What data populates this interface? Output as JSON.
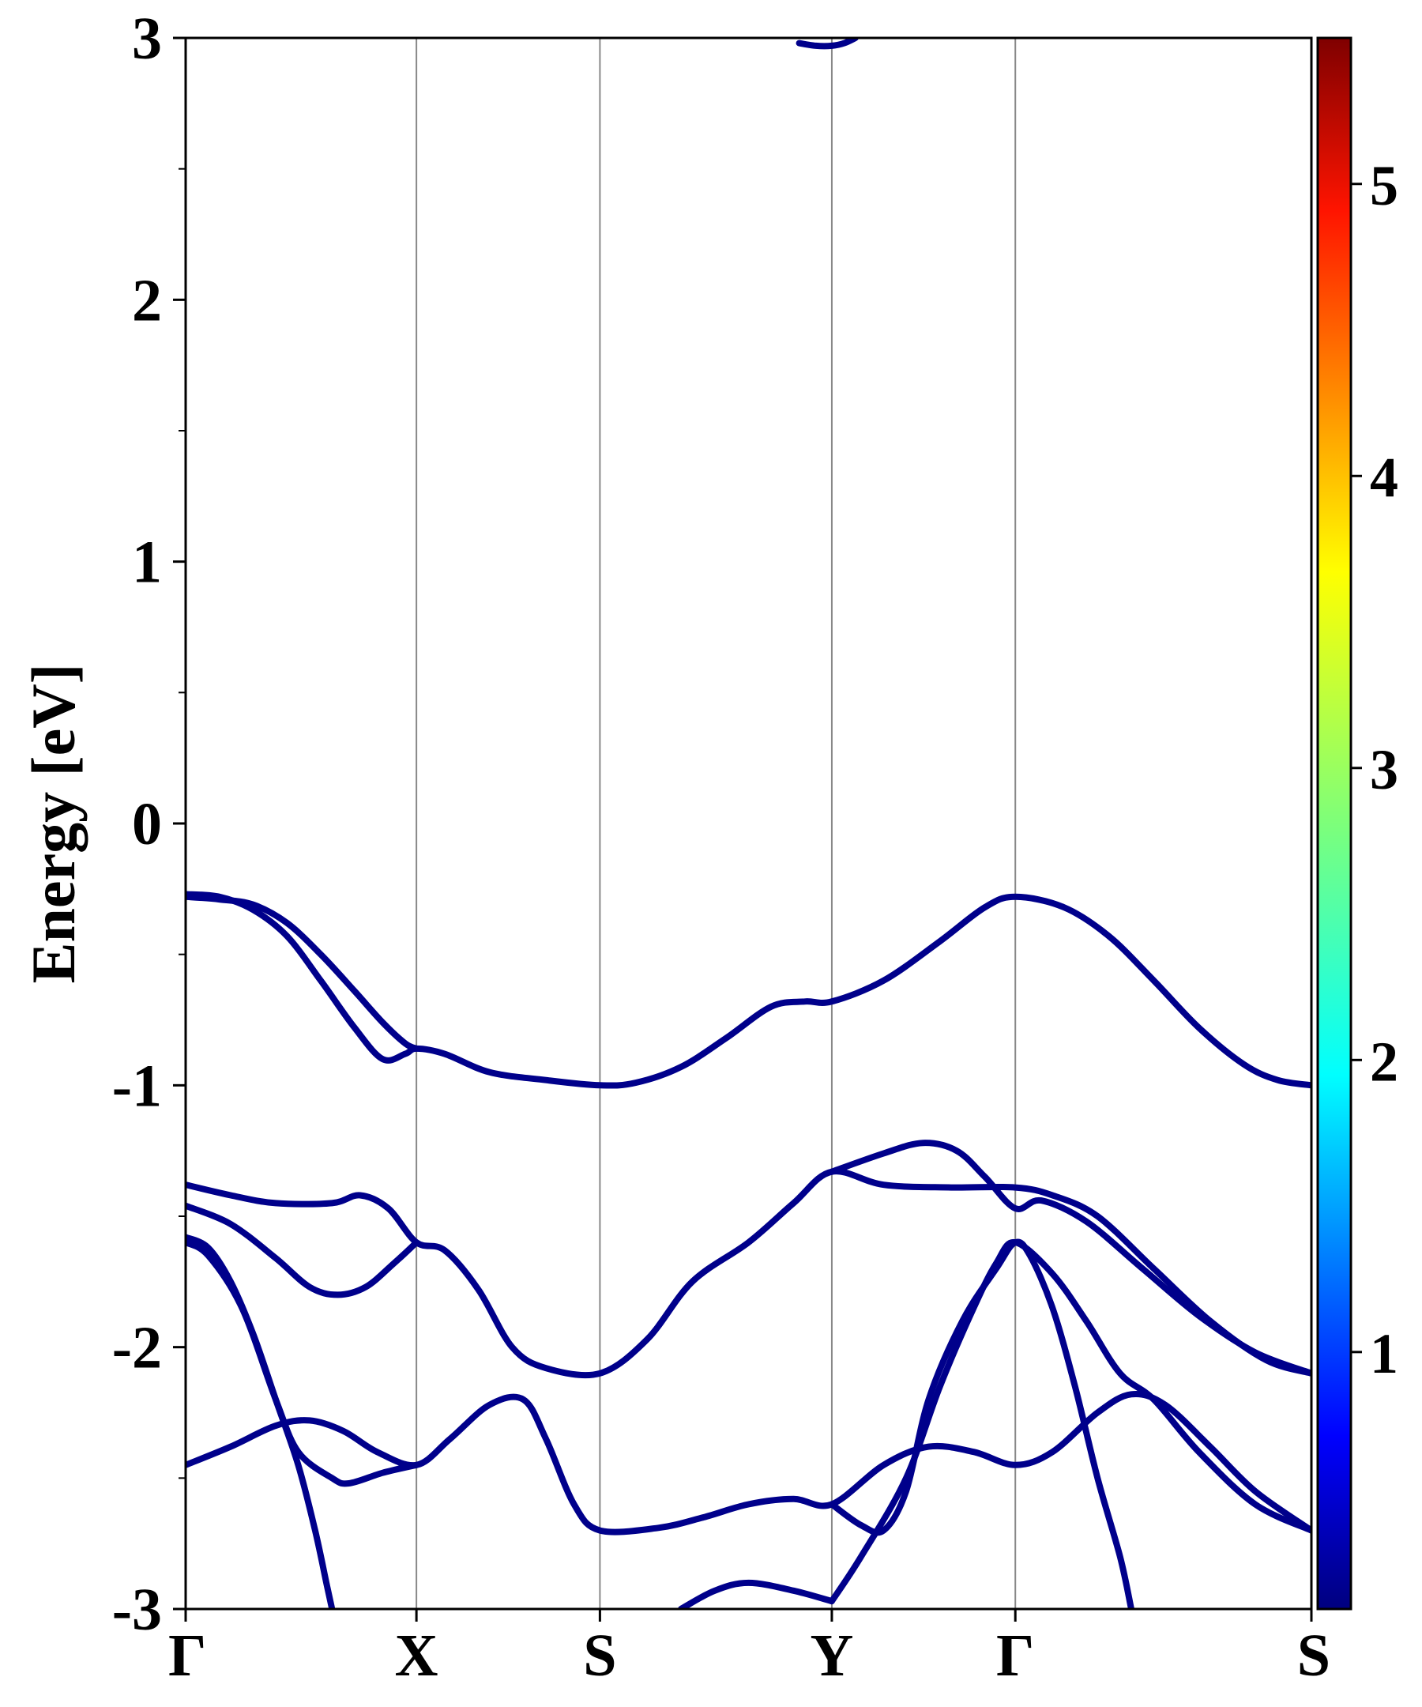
{
  "chart_data": {
    "type": "line",
    "title": "",
    "ylabel": "Energy [eV]",
    "xlabel": "",
    "ylim": [
      -3,
      3
    ],
    "xlim": [
      0,
      1
    ],
    "y_ticks": [
      "3",
      "2",
      "1",
      "0",
      "-1",
      "-2",
      "-3"
    ],
    "y_tick_values": [
      3,
      2,
      1,
      0,
      -1,
      -2,
      -3
    ],
    "y_minor_ticks": [
      2.5,
      1.5,
      0.5,
      -0.5,
      -1.5,
      -2.5
    ],
    "high_symmetry_points": [
      {
        "label": "Γ",
        "k": 0.0
      },
      {
        "label": "X",
        "k": 0.205
      },
      {
        "label": "S",
        "k": 0.368
      },
      {
        "label": "Y",
        "k": 0.574
      },
      {
        "label": "Γ",
        "k": 0.737
      },
      {
        "label": "S",
        "k": 1.0
      }
    ],
    "line_color": "#00008b",
    "colorbar": {
      "colormap": "jet",
      "range": [
        0.12,
        5.5
      ],
      "ticks": [
        "1",
        "2",
        "3",
        "4",
        "5"
      ],
      "tick_values": [
        1,
        2,
        3,
        4,
        5
      ]
    },
    "series": [
      {
        "points": [
          [
            0.0,
            -0.27
          ],
          [
            0.03,
            -0.28
          ],
          [
            0.06,
            -0.33
          ],
          [
            0.09,
            -0.43
          ],
          [
            0.12,
            -0.6
          ],
          [
            0.15,
            -0.78
          ],
          [
            0.175,
            -0.9
          ],
          [
            0.195,
            -0.88
          ],
          [
            0.205,
            -0.86
          ],
          [
            0.23,
            -0.88
          ],
          [
            0.27,
            -0.95
          ],
          [
            0.32,
            -0.98
          ],
          [
            0.368,
            -1.0
          ],
          [
            0.4,
            -0.99
          ],
          [
            0.44,
            -0.93
          ],
          [
            0.48,
            -0.82
          ],
          [
            0.52,
            -0.7
          ],
          [
            0.55,
            -0.68
          ],
          [
            0.574,
            -0.68
          ],
          [
            0.62,
            -0.6
          ],
          [
            0.67,
            -0.45
          ],
          [
            0.71,
            -0.32
          ],
          [
            0.737,
            -0.28
          ],
          [
            0.78,
            -0.32
          ],
          [
            0.82,
            -0.43
          ],
          [
            0.86,
            -0.6
          ],
          [
            0.9,
            -0.78
          ],
          [
            0.94,
            -0.92
          ],
          [
            0.97,
            -0.98
          ],
          [
            1.0,
            -1.0
          ]
        ]
      },
      {
        "points": [
          [
            0.0,
            -0.28
          ],
          [
            0.03,
            -0.29
          ],
          [
            0.06,
            -0.31
          ],
          [
            0.09,
            -0.38
          ],
          [
            0.12,
            -0.5
          ],
          [
            0.15,
            -0.64
          ],
          [
            0.175,
            -0.76
          ],
          [
            0.195,
            -0.84
          ],
          [
            0.205,
            -0.86
          ]
        ]
      },
      {
        "points": [
          [
            0.0,
            -1.38
          ],
          [
            0.04,
            -1.42
          ],
          [
            0.08,
            -1.45
          ],
          [
            0.13,
            -1.45
          ],
          [
            0.155,
            -1.42
          ],
          [
            0.18,
            -1.47
          ],
          [
            0.205,
            -1.6
          ],
          [
            0.23,
            -1.63
          ],
          [
            0.26,
            -1.78
          ],
          [
            0.29,
            -2.0
          ],
          [
            0.32,
            -2.08
          ],
          [
            0.368,
            -2.1
          ],
          [
            0.41,
            -1.97
          ],
          [
            0.45,
            -1.75
          ],
          [
            0.5,
            -1.6
          ],
          [
            0.54,
            -1.45
          ],
          [
            0.574,
            -1.33
          ],
          [
            0.62,
            -1.38
          ],
          [
            0.68,
            -1.39
          ],
          [
            0.737,
            -1.39
          ],
          [
            0.77,
            -1.42
          ],
          [
            0.81,
            -1.5
          ],
          [
            0.86,
            -1.7
          ],
          [
            0.91,
            -1.9
          ],
          [
            0.96,
            -2.05
          ],
          [
            1.0,
            -2.1
          ]
        ]
      },
      {
        "points": [
          [
            0.0,
            -1.46
          ],
          [
            0.04,
            -1.53
          ],
          [
            0.08,
            -1.66
          ],
          [
            0.11,
            -1.77
          ],
          [
            0.135,
            -1.8
          ],
          [
            0.16,
            -1.77
          ],
          [
            0.185,
            -1.68
          ],
          [
            0.205,
            -1.6
          ]
        ]
      },
      {
        "points": [
          [
            0.574,
            -1.33
          ],
          [
            0.62,
            -1.26
          ],
          [
            0.655,
            -1.22
          ],
          [
            0.685,
            -1.25
          ],
          [
            0.71,
            -1.35
          ],
          [
            0.737,
            -1.47
          ],
          [
            0.76,
            -1.44
          ],
          [
            0.8,
            -1.52
          ],
          [
            0.85,
            -1.7
          ],
          [
            0.9,
            -1.88
          ],
          [
            0.95,
            -2.02
          ],
          [
            1.0,
            -2.1
          ]
        ]
      },
      {
        "points": [
          [
            0.0,
            -1.58
          ],
          [
            0.02,
            -1.62
          ],
          [
            0.04,
            -1.75
          ],
          [
            0.06,
            -1.95
          ],
          [
            0.08,
            -2.2
          ],
          [
            0.1,
            -2.45
          ],
          [
            0.115,
            -2.7
          ],
          [
            0.125,
            -2.9
          ],
          [
            0.13,
            -3.0
          ]
        ]
      },
      {
        "points": [
          [
            0.0,
            -1.6
          ],
          [
            0.02,
            -1.65
          ],
          [
            0.05,
            -1.85
          ],
          [
            0.08,
            -2.2
          ],
          [
            0.1,
            -2.4
          ],
          [
            0.13,
            -2.5
          ],
          [
            0.145,
            -2.52
          ],
          [
            0.175,
            -2.48
          ],
          [
            0.205,
            -2.45
          ]
        ]
      },
      {
        "points": [
          [
            0.0,
            -2.45
          ],
          [
            0.04,
            -2.38
          ],
          [
            0.08,
            -2.3
          ],
          [
            0.11,
            -2.28
          ],
          [
            0.14,
            -2.32
          ],
          [
            0.17,
            -2.4
          ],
          [
            0.205,
            -2.45
          ],
          [
            0.235,
            -2.35
          ],
          [
            0.27,
            -2.22
          ],
          [
            0.3,
            -2.2
          ],
          [
            0.32,
            -2.35
          ],
          [
            0.345,
            -2.6
          ],
          [
            0.368,
            -2.7
          ],
          [
            0.42,
            -2.69
          ],
          [
            0.46,
            -2.65
          ],
          [
            0.5,
            -2.6
          ],
          [
            0.54,
            -2.58
          ],
          [
            0.574,
            -2.6
          ],
          [
            0.62,
            -2.45
          ],
          [
            0.66,
            -2.38
          ],
          [
            0.7,
            -2.4
          ],
          [
            0.737,
            -2.45
          ],
          [
            0.77,
            -2.4
          ],
          [
            0.81,
            -2.25
          ],
          [
            0.84,
            -2.18
          ],
          [
            0.87,
            -2.22
          ],
          [
            0.91,
            -2.38
          ],
          [
            0.95,
            -2.55
          ],
          [
            1.0,
            -2.7
          ]
        ]
      },
      {
        "points": [
          [
            0.574,
            -2.6
          ],
          [
            0.6,
            -2.68
          ],
          [
            0.62,
            -2.7
          ],
          [
            0.64,
            -2.55
          ],
          [
            0.66,
            -2.2
          ],
          [
            0.69,
            -1.9
          ],
          [
            0.72,
            -1.7
          ],
          [
            0.737,
            -1.6
          ],
          [
            0.75,
            -1.65
          ],
          [
            0.77,
            -1.85
          ],
          [
            0.79,
            -2.15
          ],
          [
            0.81,
            -2.5
          ],
          [
            0.83,
            -2.8
          ],
          [
            0.84,
            -3.0
          ]
        ]
      },
      {
        "points": [
          [
            0.574,
            -2.97
          ],
          [
            0.6,
            -2.8
          ],
          [
            0.64,
            -2.5
          ],
          [
            0.67,
            -2.15
          ],
          [
            0.7,
            -1.85
          ],
          [
            0.72,
            -1.68
          ],
          [
            0.737,
            -1.6
          ],
          [
            0.77,
            -1.72
          ],
          [
            0.8,
            -1.9
          ],
          [
            0.83,
            -2.1
          ],
          [
            0.86,
            -2.2
          ],
          [
            0.9,
            -2.4
          ],
          [
            0.95,
            -2.6
          ],
          [
            1.0,
            -2.7
          ]
        ]
      },
      {
        "points": [
          [
            0.44,
            -3.0
          ],
          [
            0.47,
            -2.93
          ],
          [
            0.5,
            -2.9
          ],
          [
            0.54,
            -2.93
          ],
          [
            0.574,
            -2.97
          ]
        ]
      },
      {
        "points": [
          [
            0.545,
            2.98
          ],
          [
            0.56,
            2.97
          ],
          [
            0.574,
            2.97
          ],
          [
            0.585,
            2.98
          ],
          [
            0.595,
            3.0
          ]
        ]
      }
    ]
  }
}
